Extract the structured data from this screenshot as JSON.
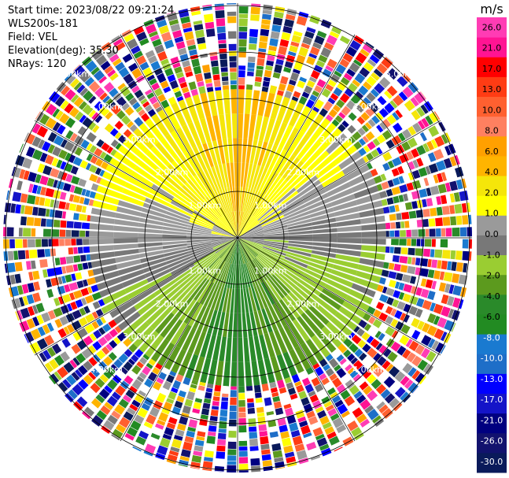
{
  "info": {
    "start_time": "Start time: 2023/08/22 09:21:24",
    "instrument": "WLS200s-181",
    "field": "Field: VEL",
    "elevation": "Elevation(deg): 35.30",
    "nrays": "NRays: 120"
  },
  "colorbar": {
    "unit": "m/s",
    "min": -30.0,
    "max": 30.0,
    "colors": [
      "#0a1a5a",
      "#12126e",
      "#000080",
      "#1414c8",
      "#0000ff",
      "#1e6ec8",
      "#1a7ad0",
      "#228b22",
      "#2a8a2a",
      "#5c9a1e",
      "#9acd32",
      "#787878",
      "#9a9a9a",
      "#ffff00",
      "#f5e60a",
      "#ffb400",
      "#ffa000",
      "#ff8060",
      "#ff6030",
      "#ff3c14",
      "#ff0000",
      "#ff1493",
      "#ff3cb4"
    ],
    "ticks": [
      "26.0",
      "21.0",
      "17.0",
      "13.0",
      "10.0",
      "8.0",
      "6.0",
      "4.0",
      "2.0",
      "1.0",
      "0.0",
      "-1.0",
      "-2.0",
      "-4.0",
      "-6.0",
      "-8.0",
      "-10.0",
      "-13.0",
      "-17.0",
      "-21.0",
      "-26.0",
      "-30.0"
    ]
  },
  "chart_data": {
    "type": "heatmap",
    "projection": "polar (PPI)",
    "field": "VEL",
    "units": "m/s",
    "nrays": 120,
    "range_rings_km": [
      1,
      2,
      3,
      4,
      5
    ],
    "range_ring_labels": [
      "1.00km",
      "2.00km",
      "3.00km",
      "4.00km",
      "5.00km"
    ],
    "ring_label_count": [
      4,
      4,
      4,
      4,
      2
    ],
    "valid_range_km": 3.2,
    "velocity_pattern": [
      {
        "azimuth_deg": 0,
        "velocity": 10.0
      },
      {
        "azimuth_deg": 90,
        "velocity": 0.0
      },
      {
        "azimuth_deg": 180,
        "velocity": -8.0
      },
      {
        "azimuth_deg": 270,
        "velocity": 2.0
      }
    ],
    "ylim": [
      -30.0,
      30.0
    ]
  }
}
